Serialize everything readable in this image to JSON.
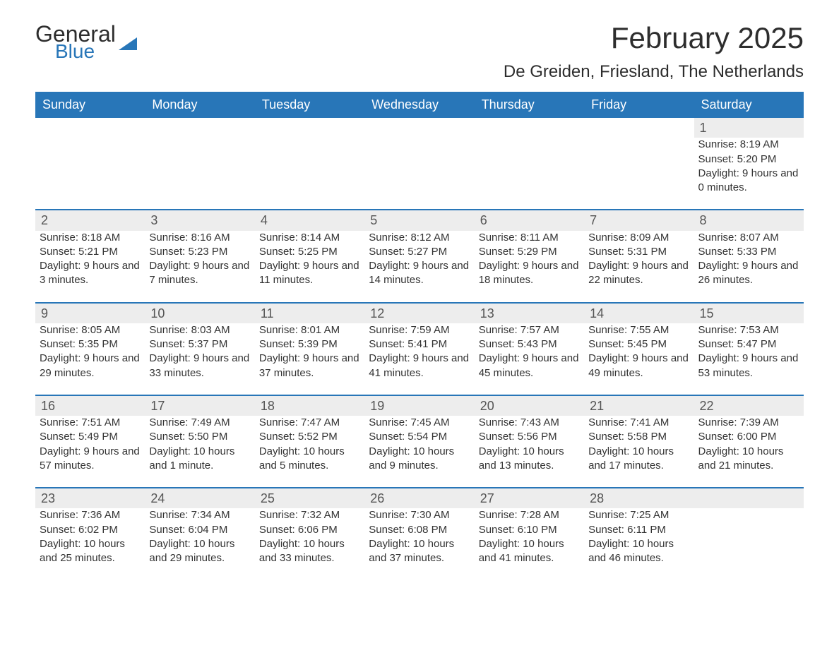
{
  "logo": {
    "word1": "General",
    "word2": "Blue"
  },
  "title": "February 2025",
  "location": "De Greiden, Friesland, The Netherlands",
  "colors": {
    "header_bg": "#2876b8",
    "header_text": "#ffffff",
    "daynum_bg": "#ededed",
    "rule": "#2876b8",
    "body_text": "#333333",
    "page_bg": "#ffffff"
  },
  "weekdays": [
    "Sunday",
    "Monday",
    "Tuesday",
    "Wednesday",
    "Thursday",
    "Friday",
    "Saturday"
  ],
  "weeks": [
    [
      null,
      null,
      null,
      null,
      null,
      null,
      {
        "n": "1",
        "sunrise": "Sunrise: 8:19 AM",
        "sunset": "Sunset: 5:20 PM",
        "daylight": "Daylight: 9 hours and 0 minutes."
      }
    ],
    [
      {
        "n": "2",
        "sunrise": "Sunrise: 8:18 AM",
        "sunset": "Sunset: 5:21 PM",
        "daylight": "Daylight: 9 hours and 3 minutes."
      },
      {
        "n": "3",
        "sunrise": "Sunrise: 8:16 AM",
        "sunset": "Sunset: 5:23 PM",
        "daylight": "Daylight: 9 hours and 7 minutes."
      },
      {
        "n": "4",
        "sunrise": "Sunrise: 8:14 AM",
        "sunset": "Sunset: 5:25 PM",
        "daylight": "Daylight: 9 hours and 11 minutes."
      },
      {
        "n": "5",
        "sunrise": "Sunrise: 8:12 AM",
        "sunset": "Sunset: 5:27 PM",
        "daylight": "Daylight: 9 hours and 14 minutes."
      },
      {
        "n": "6",
        "sunrise": "Sunrise: 8:11 AM",
        "sunset": "Sunset: 5:29 PM",
        "daylight": "Daylight: 9 hours and 18 minutes."
      },
      {
        "n": "7",
        "sunrise": "Sunrise: 8:09 AM",
        "sunset": "Sunset: 5:31 PM",
        "daylight": "Daylight: 9 hours and 22 minutes."
      },
      {
        "n": "8",
        "sunrise": "Sunrise: 8:07 AM",
        "sunset": "Sunset: 5:33 PM",
        "daylight": "Daylight: 9 hours and 26 minutes."
      }
    ],
    [
      {
        "n": "9",
        "sunrise": "Sunrise: 8:05 AM",
        "sunset": "Sunset: 5:35 PM",
        "daylight": "Daylight: 9 hours and 29 minutes."
      },
      {
        "n": "10",
        "sunrise": "Sunrise: 8:03 AM",
        "sunset": "Sunset: 5:37 PM",
        "daylight": "Daylight: 9 hours and 33 minutes."
      },
      {
        "n": "11",
        "sunrise": "Sunrise: 8:01 AM",
        "sunset": "Sunset: 5:39 PM",
        "daylight": "Daylight: 9 hours and 37 minutes."
      },
      {
        "n": "12",
        "sunrise": "Sunrise: 7:59 AM",
        "sunset": "Sunset: 5:41 PM",
        "daylight": "Daylight: 9 hours and 41 minutes."
      },
      {
        "n": "13",
        "sunrise": "Sunrise: 7:57 AM",
        "sunset": "Sunset: 5:43 PM",
        "daylight": "Daylight: 9 hours and 45 minutes."
      },
      {
        "n": "14",
        "sunrise": "Sunrise: 7:55 AM",
        "sunset": "Sunset: 5:45 PM",
        "daylight": "Daylight: 9 hours and 49 minutes."
      },
      {
        "n": "15",
        "sunrise": "Sunrise: 7:53 AM",
        "sunset": "Sunset: 5:47 PM",
        "daylight": "Daylight: 9 hours and 53 minutes."
      }
    ],
    [
      {
        "n": "16",
        "sunrise": "Sunrise: 7:51 AM",
        "sunset": "Sunset: 5:49 PM",
        "daylight": "Daylight: 9 hours and 57 minutes."
      },
      {
        "n": "17",
        "sunrise": "Sunrise: 7:49 AM",
        "sunset": "Sunset: 5:50 PM",
        "daylight": "Daylight: 10 hours and 1 minute."
      },
      {
        "n": "18",
        "sunrise": "Sunrise: 7:47 AM",
        "sunset": "Sunset: 5:52 PM",
        "daylight": "Daylight: 10 hours and 5 minutes."
      },
      {
        "n": "19",
        "sunrise": "Sunrise: 7:45 AM",
        "sunset": "Sunset: 5:54 PM",
        "daylight": "Daylight: 10 hours and 9 minutes."
      },
      {
        "n": "20",
        "sunrise": "Sunrise: 7:43 AM",
        "sunset": "Sunset: 5:56 PM",
        "daylight": "Daylight: 10 hours and 13 minutes."
      },
      {
        "n": "21",
        "sunrise": "Sunrise: 7:41 AM",
        "sunset": "Sunset: 5:58 PM",
        "daylight": "Daylight: 10 hours and 17 minutes."
      },
      {
        "n": "22",
        "sunrise": "Sunrise: 7:39 AM",
        "sunset": "Sunset: 6:00 PM",
        "daylight": "Daylight: 10 hours and 21 minutes."
      }
    ],
    [
      {
        "n": "23",
        "sunrise": "Sunrise: 7:36 AM",
        "sunset": "Sunset: 6:02 PM",
        "daylight": "Daylight: 10 hours and 25 minutes."
      },
      {
        "n": "24",
        "sunrise": "Sunrise: 7:34 AM",
        "sunset": "Sunset: 6:04 PM",
        "daylight": "Daylight: 10 hours and 29 minutes."
      },
      {
        "n": "25",
        "sunrise": "Sunrise: 7:32 AM",
        "sunset": "Sunset: 6:06 PM",
        "daylight": "Daylight: 10 hours and 33 minutes."
      },
      {
        "n": "26",
        "sunrise": "Sunrise: 7:30 AM",
        "sunset": "Sunset: 6:08 PM",
        "daylight": "Daylight: 10 hours and 37 minutes."
      },
      {
        "n": "27",
        "sunrise": "Sunrise: 7:28 AM",
        "sunset": "Sunset: 6:10 PM",
        "daylight": "Daylight: 10 hours and 41 minutes."
      },
      {
        "n": "28",
        "sunrise": "Sunrise: 7:25 AM",
        "sunset": "Sunset: 6:11 PM",
        "daylight": "Daylight: 10 hours and 46 minutes."
      },
      null
    ]
  ]
}
